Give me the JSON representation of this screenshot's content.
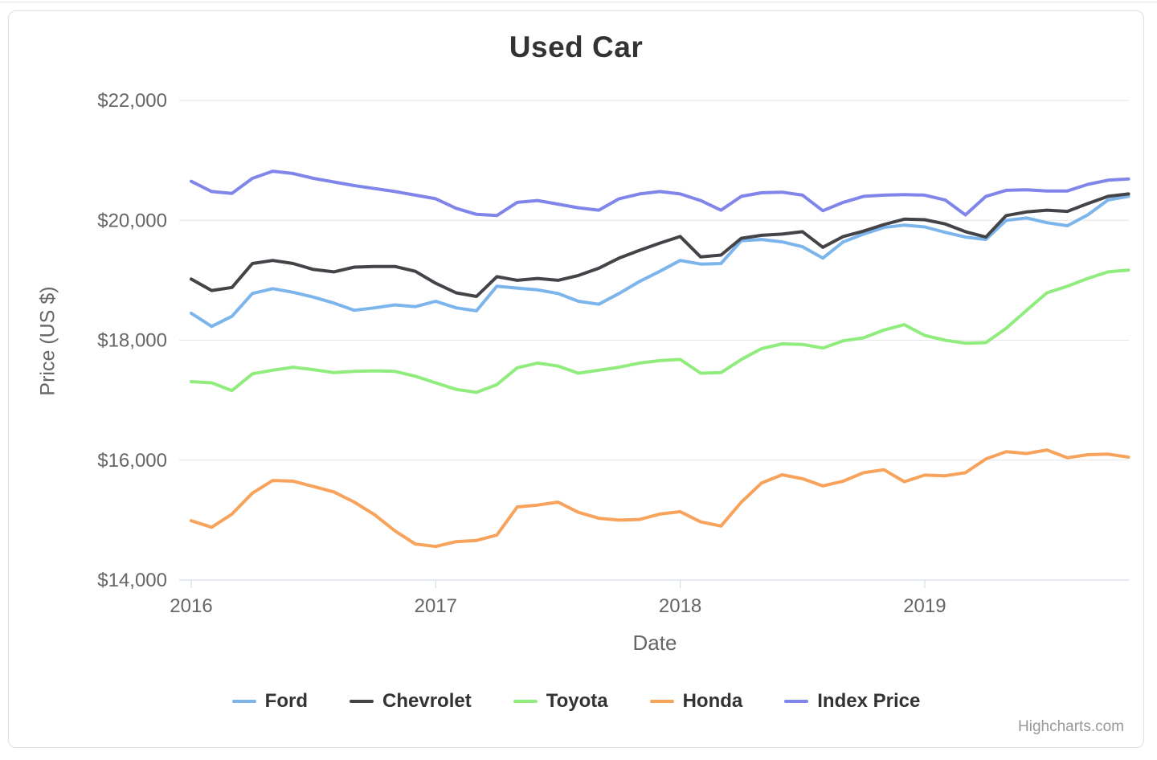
{
  "chart_data": {
    "type": "line",
    "title": "Used Car",
    "xlabel": "Date",
    "ylabel": "Price (US $)",
    "ylim": [
      14000,
      22000
    ],
    "grid": true,
    "legend_position": "bottom",
    "x_start": "2016-01",
    "x_interval": "monthly",
    "x_ticks": [
      {
        "label": "2016",
        "month": 0
      },
      {
        "label": "2017",
        "month": 12
      },
      {
        "label": "2018",
        "month": 24
      },
      {
        "label": "2019",
        "month": 36
      }
    ],
    "y_ticks": [
      {
        "label": "$22,000",
        "value": 22000
      },
      {
        "label": "$20,000",
        "value": 20000
      },
      {
        "label": "$18,000",
        "value": 18000
      },
      {
        "label": "$16,000",
        "value": 16000
      },
      {
        "label": "$14,000",
        "value": 14000
      }
    ],
    "series": [
      {
        "name": "Ford",
        "color": "#7cb5ec",
        "values": [
          18450,
          18230,
          18400,
          18780,
          18860,
          18800,
          18720,
          18620,
          18500,
          18540,
          18590,
          18560,
          18650,
          18540,
          18490,
          18900,
          18870,
          18840,
          18780,
          18650,
          18600,
          18780,
          18980,
          19150,
          19330,
          19270,
          19280,
          19660,
          19680,
          19640,
          19560,
          19370,
          19640,
          19770,
          19880,
          19920,
          19890,
          19800,
          19720,
          19680,
          20000,
          20040,
          19960,
          19910,
          20090,
          20340,
          20400
        ]
      },
      {
        "name": "Chevrolet",
        "color": "#434348",
        "values": [
          19020,
          18830,
          18880,
          19280,
          19330,
          19280,
          19180,
          19140,
          19220,
          19230,
          19230,
          19150,
          18950,
          18790,
          18730,
          19060,
          19000,
          19030,
          19000,
          19080,
          19200,
          19370,
          19500,
          19620,
          19730,
          19390,
          19420,
          19700,
          19750,
          19770,
          19810,
          19550,
          19730,
          19820,
          19930,
          20020,
          20010,
          19940,
          19810,
          19720,
          20080,
          20140,
          20170,
          20150,
          20280,
          20400,
          20440
        ]
      },
      {
        "name": "Toyota",
        "color": "#90ed7d",
        "values": [
          17310,
          17290,
          17160,
          17440,
          17500,
          17550,
          17510,
          17460,
          17480,
          17490,
          17480,
          17400,
          17290,
          17180,
          17130,
          17260,
          17540,
          17620,
          17570,
          17450,
          17500,
          17550,
          17620,
          17660,
          17680,
          17450,
          17460,
          17680,
          17860,
          17940,
          17930,
          17870,
          17990,
          18040,
          18170,
          18260,
          18080,
          18000,
          17950,
          17960,
          18200,
          18500,
          18790,
          18900,
          19030,
          19140,
          19170
        ]
      },
      {
        "name": "Honda",
        "color": "#f7a35c",
        "values": [
          14990,
          14880,
          15100,
          15450,
          15660,
          15650,
          15560,
          15470,
          15300,
          15090,
          14820,
          14600,
          14560,
          14640,
          14660,
          14750,
          15220,
          15250,
          15300,
          15130,
          15030,
          15000,
          15010,
          15100,
          15140,
          14970,
          14900,
          15300,
          15620,
          15755,
          15690,
          15570,
          15650,
          15790,
          15840,
          15640,
          15750,
          15740,
          15790,
          16020,
          16140,
          16110,
          16170,
          16040,
          16090,
          16100,
          16050
        ]
      },
      {
        "name": "Index Price",
        "color": "#8085e9",
        "values": [
          20650,
          20480,
          20450,
          20700,
          20820,
          20780,
          20700,
          20640,
          20580,
          20530,
          20480,
          20420,
          20360,
          20200,
          20100,
          20080,
          20300,
          20330,
          20270,
          20210,
          20170,
          20360,
          20440,
          20480,
          20440,
          20330,
          20170,
          20400,
          20460,
          20470,
          20420,
          20160,
          20300,
          20400,
          20420,
          20430,
          20420,
          20340,
          20090,
          20400,
          20500,
          20510,
          20490,
          20490,
          20600,
          20670,
          20690
        ]
      }
    ],
    "credit": "Highcharts.com"
  }
}
